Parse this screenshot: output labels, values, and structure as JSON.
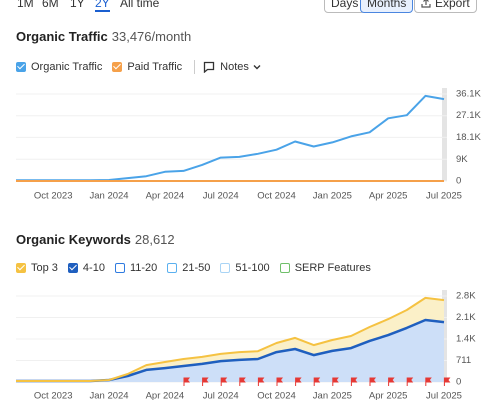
{
  "toolbar": {
    "ranges": [
      "1M",
      "6M",
      "1Y",
      "2Y",
      "All time"
    ],
    "selected_range": "2Y",
    "views": [
      "Days",
      "Months"
    ],
    "selected_view": "Months",
    "export": "Export"
  },
  "chart_data": [
    {
      "type": "line",
      "title": "Organic Traffic",
      "subtitle": "33,476/month",
      "notes": "Notes",
      "categories": [
        null,
        null,
        "Oct 2023",
        null,
        null,
        "Jan 2024",
        null,
        null,
        "Apr 2024",
        null,
        null,
        "Jul 2024",
        null,
        null,
        "Oct 2024",
        null,
        null,
        "Jan 2025",
        null,
        null,
        "Apr 2025",
        null,
        null,
        "Jul 2025"
      ],
      "series": [
        {
          "name": "Organic Traffic",
          "color": "#4aa3e8",
          "values": [
            300,
            300,
            300,
            300,
            300,
            400,
            1200,
            2000,
            3800,
            4200,
            6700,
            9700,
            10000,
            11300,
            13000,
            16400,
            14300,
            16000,
            18500,
            20200,
            26000,
            27300,
            35300,
            34000
          ]
        },
        {
          "name": "Paid Traffic",
          "color": "#f5a04a",
          "values": [
            0,
            0,
            0,
            0,
            0,
            0,
            0,
            0,
            0,
            0,
            0,
            0,
            0,
            0,
            0,
            0,
            0,
            0,
            0,
            0,
            0,
            0,
            0,
            0
          ]
        }
      ],
      "ylim": [
        0,
        36100
      ],
      "yticks": [
        0,
        {
          "value": 9000,
          "label": "9K"
        },
        {
          "value": 18100,
          "label": "18.1K"
        },
        {
          "value": 27100,
          "label": "27.1K"
        },
        {
          "value": 36100,
          "label": "36.1K"
        }
      ],
      "grid": true,
      "stacked": false
    },
    {
      "type": "area",
      "title": "Organic Keywords",
      "subtitle": "28,612",
      "categories": [
        null,
        null,
        "Oct 2023",
        null,
        null,
        "Jan 2024",
        null,
        null,
        "Apr 2024",
        null,
        null,
        "Jul 2024",
        null,
        null,
        "Oct 2024",
        null,
        null,
        "Jan 2025",
        null,
        null,
        "Apr 2025",
        null,
        null,
        "Jul 2025"
      ],
      "series": [
        {
          "name": "Top 3",
          "color": "#f5c242",
          "area_color": "#fbf0c8",
          "values": [
            0,
            0,
            0,
            0,
            0,
            0,
            65,
            160,
            200,
            230,
            230,
            240,
            260,
            260,
            300,
            370,
            330,
            360,
            400,
            460,
            530,
            590,
            730,
            730
          ]
        },
        {
          "name": "4-10",
          "color": "#1f5fbf",
          "area_color": "#cddff8",
          "values": [
            33,
            33,
            33,
            33,
            33,
            66,
            200,
            400,
            460,
            530,
            600,
            690,
            730,
            760,
            990,
            1090,
            890,
            1030,
            1120,
            1360,
            1550,
            1790,
            2050,
            1980
          ]
        }
      ],
      "other_legend": [
        {
          "name": "11-20",
          "color": "#2f7be0"
        },
        {
          "name": "21-50",
          "color": "#5ab0ef"
        },
        {
          "name": "51-100",
          "color": "#a9d4f5"
        },
        {
          "name": "SERP Features",
          "color": "#6fbf6a"
        }
      ],
      "ylim": [
        0,
        2844
      ],
      "yticks": [
        0,
        711,
        {
          "value": 1422,
          "label": "1.4K"
        },
        {
          "value": 2133,
          "label": "2.1K"
        },
        {
          "value": 2844,
          "label": "2.8K"
        }
      ],
      "grid": true,
      "stacked": true
    }
  ]
}
